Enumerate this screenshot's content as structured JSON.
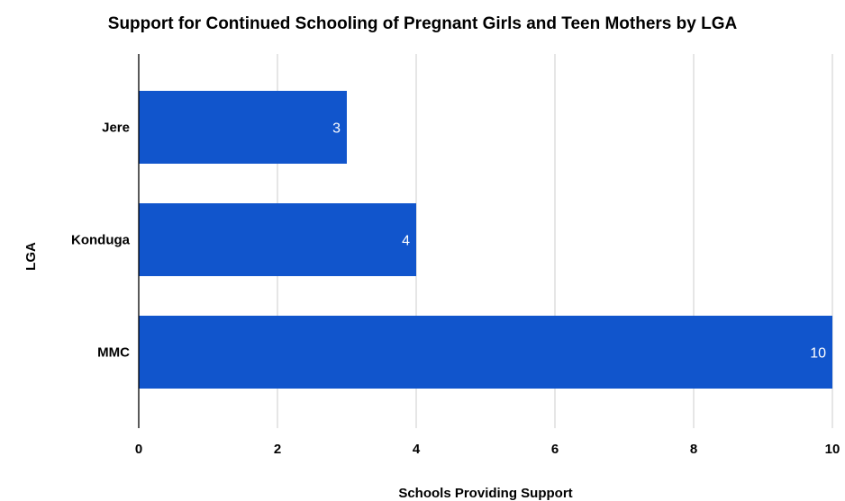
{
  "chart_data": {
    "type": "bar",
    "orientation": "horizontal",
    "title": "Support for Continued Schooling of Pregnant Girls and Teen Mothers by LGA",
    "xlabel": "Schools Providing Support",
    "ylabel": "LGA",
    "categories": [
      "Jere",
      "Konduga",
      "MMC"
    ],
    "values": [
      3,
      4,
      10
    ],
    "data_labels": [
      "3",
      "4",
      "10"
    ],
    "xlim": [
      0,
      10
    ],
    "x_ticks": [
      0,
      2,
      4,
      6,
      8,
      10
    ],
    "grid": true,
    "legend": "none",
    "bar_color": "#1155cc",
    "grid_color": "#cccccc",
    "axis_color": "#000000",
    "label_color": "#ffffff"
  }
}
